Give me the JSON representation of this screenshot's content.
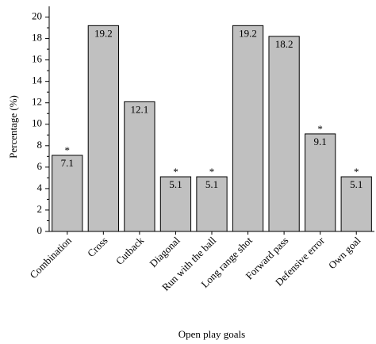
{
  "chart_data": {
    "type": "bar",
    "x_label": "Open play goals",
    "y_label": "Percentage (%)",
    "categories": [
      "Combination",
      "Cross",
      "Cutback",
      "Diagonal",
      "Run with the ball",
      "Long range shot",
      "Forward pass",
      "Defensive error",
      "Own goal"
    ],
    "values": [
      7.1,
      19.2,
      12.1,
      5.1,
      5.1,
      19.2,
      18.2,
      9.1,
      5.1
    ],
    "markers": [
      "*",
      null,
      null,
      "*",
      "*",
      null,
      null,
      "*",
      "*"
    ],
    "color": "#c0c0c0",
    "ylim": [
      0,
      21
    ],
    "yticks": [
      0,
      2,
      4,
      6,
      8,
      10,
      12,
      14,
      16,
      18,
      20
    ]
  }
}
